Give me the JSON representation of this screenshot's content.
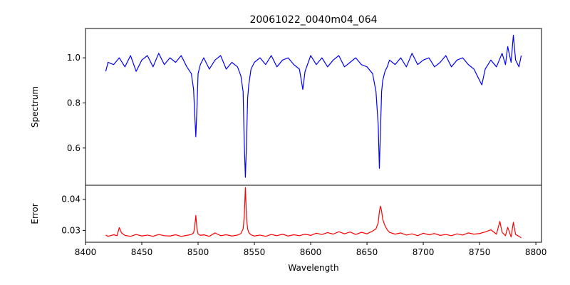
{
  "title": "20061022_0040m04_064",
  "chart_data": [
    {
      "type": "line",
      "panel": "spectrum",
      "title": "20061022_0040m04_064",
      "xlabel": "",
      "ylabel": "Spectrum",
      "xlim": [
        8400,
        8805
      ],
      "ylim": [
        0.435,
        1.13
      ],
      "yticks": [
        "0.6",
        "0.8",
        "1.0"
      ],
      "color": "#0000ff",
      "grid": false,
      "series": [
        {
          "x": [
            8418,
            8420,
            8425,
            8430,
            8435,
            8440,
            8445,
            8450,
            8455,
            8460,
            8465,
            8470,
            8475,
            8480,
            8485,
            8490,
            8494,
            8496,
            8497,
            8498,
            8499,
            8500,
            8502,
            8505,
            8510,
            8515,
            8520,
            8525,
            8530,
            8535,
            8538,
            8540,
            8541,
            8542,
            8543,
            8544,
            8545,
            8547,
            8550,
            8555,
            8560,
            8565,
            8570,
            8575,
            8580,
            8585,
            8590,
            8593,
            8595,
            8600,
            8605,
            8610,
            8615,
            8620,
            8625,
            8630,
            8635,
            8640,
            8645,
            8650,
            8655,
            8658,
            8660,
            8661,
            8662,
            8663,
            8664,
            8666,
            8668,
            8670,
            8675,
            8680,
            8685,
            8690,
            8695,
            8700,
            8705,
            8710,
            8715,
            8720,
            8725,
            8730,
            8735,
            8740,
            8745,
            8750,
            8752,
            8755,
            8760,
            8765,
            8770,
            8773,
            8775,
            8778,
            8780,
            8782,
            8785,
            8787
          ],
          "y": [
            0.94,
            0.98,
            0.97,
            1.0,
            0.96,
            1.01,
            0.94,
            0.99,
            1.01,
            0.96,
            1.02,
            0.97,
            1.0,
            0.98,
            1.01,
            0.96,
            0.93,
            0.86,
            0.75,
            0.65,
            0.78,
            0.93,
            0.97,
            1.0,
            0.95,
            0.99,
            1.01,
            0.95,
            0.98,
            0.96,
            0.92,
            0.85,
            0.62,
            0.47,
            0.62,
            0.82,
            0.88,
            0.95,
            0.98,
            1.0,
            0.97,
            1.01,
            0.96,
            0.99,
            1.0,
            0.97,
            0.95,
            0.86,
            0.94,
            1.01,
            0.97,
            1.0,
            0.96,
            0.99,
            1.01,
            0.96,
            0.98,
            1.0,
            0.97,
            0.96,
            0.93,
            0.85,
            0.7,
            0.51,
            0.68,
            0.85,
            0.9,
            0.94,
            0.96,
            0.99,
            0.97,
            1.0,
            0.96,
            1.02,
            0.97,
            0.99,
            1.0,
            0.96,
            0.98,
            1.01,
            0.96,
            0.99,
            1.0,
            0.97,
            0.95,
            0.9,
            0.88,
            0.95,
            0.99,
            0.96,
            1.02,
            0.97,
            1.05,
            0.98,
            1.1,
            0.99,
            0.96,
            1.01
          ]
        }
      ]
    },
    {
      "type": "line",
      "panel": "error",
      "xlabel": "Wavelength",
      "ylabel": "Error",
      "xlim": [
        8400,
        8805
      ],
      "ylim": [
        0.0262,
        0.0445
      ],
      "xticks": [
        "8400",
        "8450",
        "8500",
        "8550",
        "8600",
        "8650",
        "8700",
        "8750",
        "8800"
      ],
      "yticks": [
        "0.03",
        "0.04"
      ],
      "color": "#ff0000",
      "grid": false,
      "series": [
        {
          "x": [
            8418,
            8420,
            8425,
            8428,
            8430,
            8432,
            8435,
            8440,
            8445,
            8450,
            8455,
            8460,
            8465,
            8470,
            8475,
            8480,
            8485,
            8490,
            8494,
            8496,
            8497,
            8498,
            8499,
            8500,
            8502,
            8505,
            8510,
            8515,
            8520,
            8525,
            8530,
            8535,
            8538,
            8540,
            8541,
            8542,
            8543,
            8544,
            8545,
            8547,
            8550,
            8555,
            8560,
            8565,
            8570,
            8575,
            8580,
            8585,
            8590,
            8595,
            8600,
            8605,
            8610,
            8615,
            8620,
            8625,
            8630,
            8635,
            8640,
            8645,
            8650,
            8655,
            8658,
            8660,
            8661,
            8662,
            8663,
            8664,
            8666,
            8668,
            8670,
            8675,
            8680,
            8685,
            8690,
            8695,
            8700,
            8705,
            8710,
            8715,
            8720,
            8725,
            8730,
            8735,
            8740,
            8745,
            8750,
            8755,
            8760,
            8765,
            8768,
            8770,
            8773,
            8775,
            8778,
            8780,
            8782,
            8785,
            8787
          ],
          "y": [
            0.0285,
            0.0281,
            0.0286,
            0.0283,
            0.0309,
            0.0292,
            0.0284,
            0.0281,
            0.0287,
            0.0282,
            0.0285,
            0.0281,
            0.0287,
            0.0283,
            0.0282,
            0.0286,
            0.0281,
            0.0284,
            0.0287,
            0.0292,
            0.0312,
            0.0348,
            0.0305,
            0.0289,
            0.0284,
            0.0286,
            0.0281,
            0.0292,
            0.0283,
            0.0286,
            0.0282,
            0.0285,
            0.029,
            0.0305,
            0.0345,
            0.0438,
            0.034,
            0.0305,
            0.0293,
            0.0286,
            0.0282,
            0.0285,
            0.0281,
            0.0287,
            0.0283,
            0.0288,
            0.0282,
            0.0286,
            0.0283,
            0.0288,
            0.0284,
            0.0291,
            0.0287,
            0.0293,
            0.0288,
            0.0296,
            0.0289,
            0.0295,
            0.0287,
            0.0294,
            0.0289,
            0.0298,
            0.0305,
            0.0325,
            0.036,
            0.0378,
            0.0362,
            0.0335,
            0.0315,
            0.0302,
            0.0294,
            0.0288,
            0.0292,
            0.0285,
            0.0289,
            0.0283,
            0.0291,
            0.0286,
            0.029,
            0.0284,
            0.0287,
            0.0283,
            0.0289,
            0.0285,
            0.0292,
            0.0288,
            0.029,
            0.0295,
            0.0302,
            0.0288,
            0.0329,
            0.0294,
            0.0283,
            0.031,
            0.0279,
            0.0326,
            0.0287,
            0.0281,
            0.0276
          ]
        }
      ]
    }
  ]
}
